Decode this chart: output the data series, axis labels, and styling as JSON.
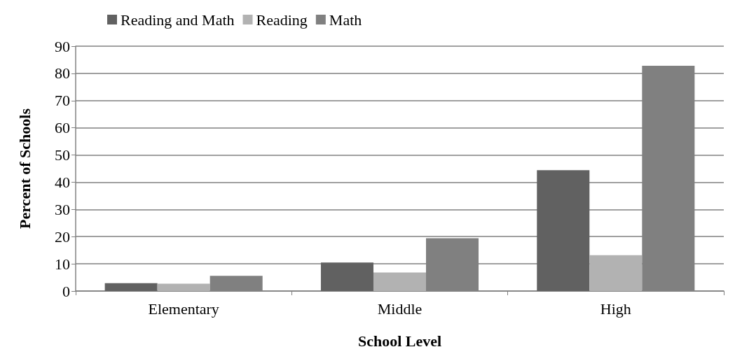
{
  "chart_data": {
    "type": "bar",
    "xlabel": "School Level",
    "ylabel": "Percent of Schools",
    "categories": [
      "Elementary",
      "Middle",
      "High"
    ],
    "series": [
      {
        "name": "Reading and Math",
        "color": "#616161",
        "values": [
          2.9,
          10.5,
          44.4
        ]
      },
      {
        "name": "Reading",
        "color": "#b2b2b2",
        "values": [
          2.7,
          6.8,
          13.2
        ]
      },
      {
        "name": "Math",
        "color": "#808080",
        "values": [
          5.6,
          19.4,
          82.8
        ]
      }
    ],
    "ylim": [
      0,
      90
    ],
    "yticks": [
      0,
      10,
      20,
      30,
      40,
      50,
      60,
      70,
      80,
      90
    ],
    "grid": "y",
    "legend": "top"
  }
}
